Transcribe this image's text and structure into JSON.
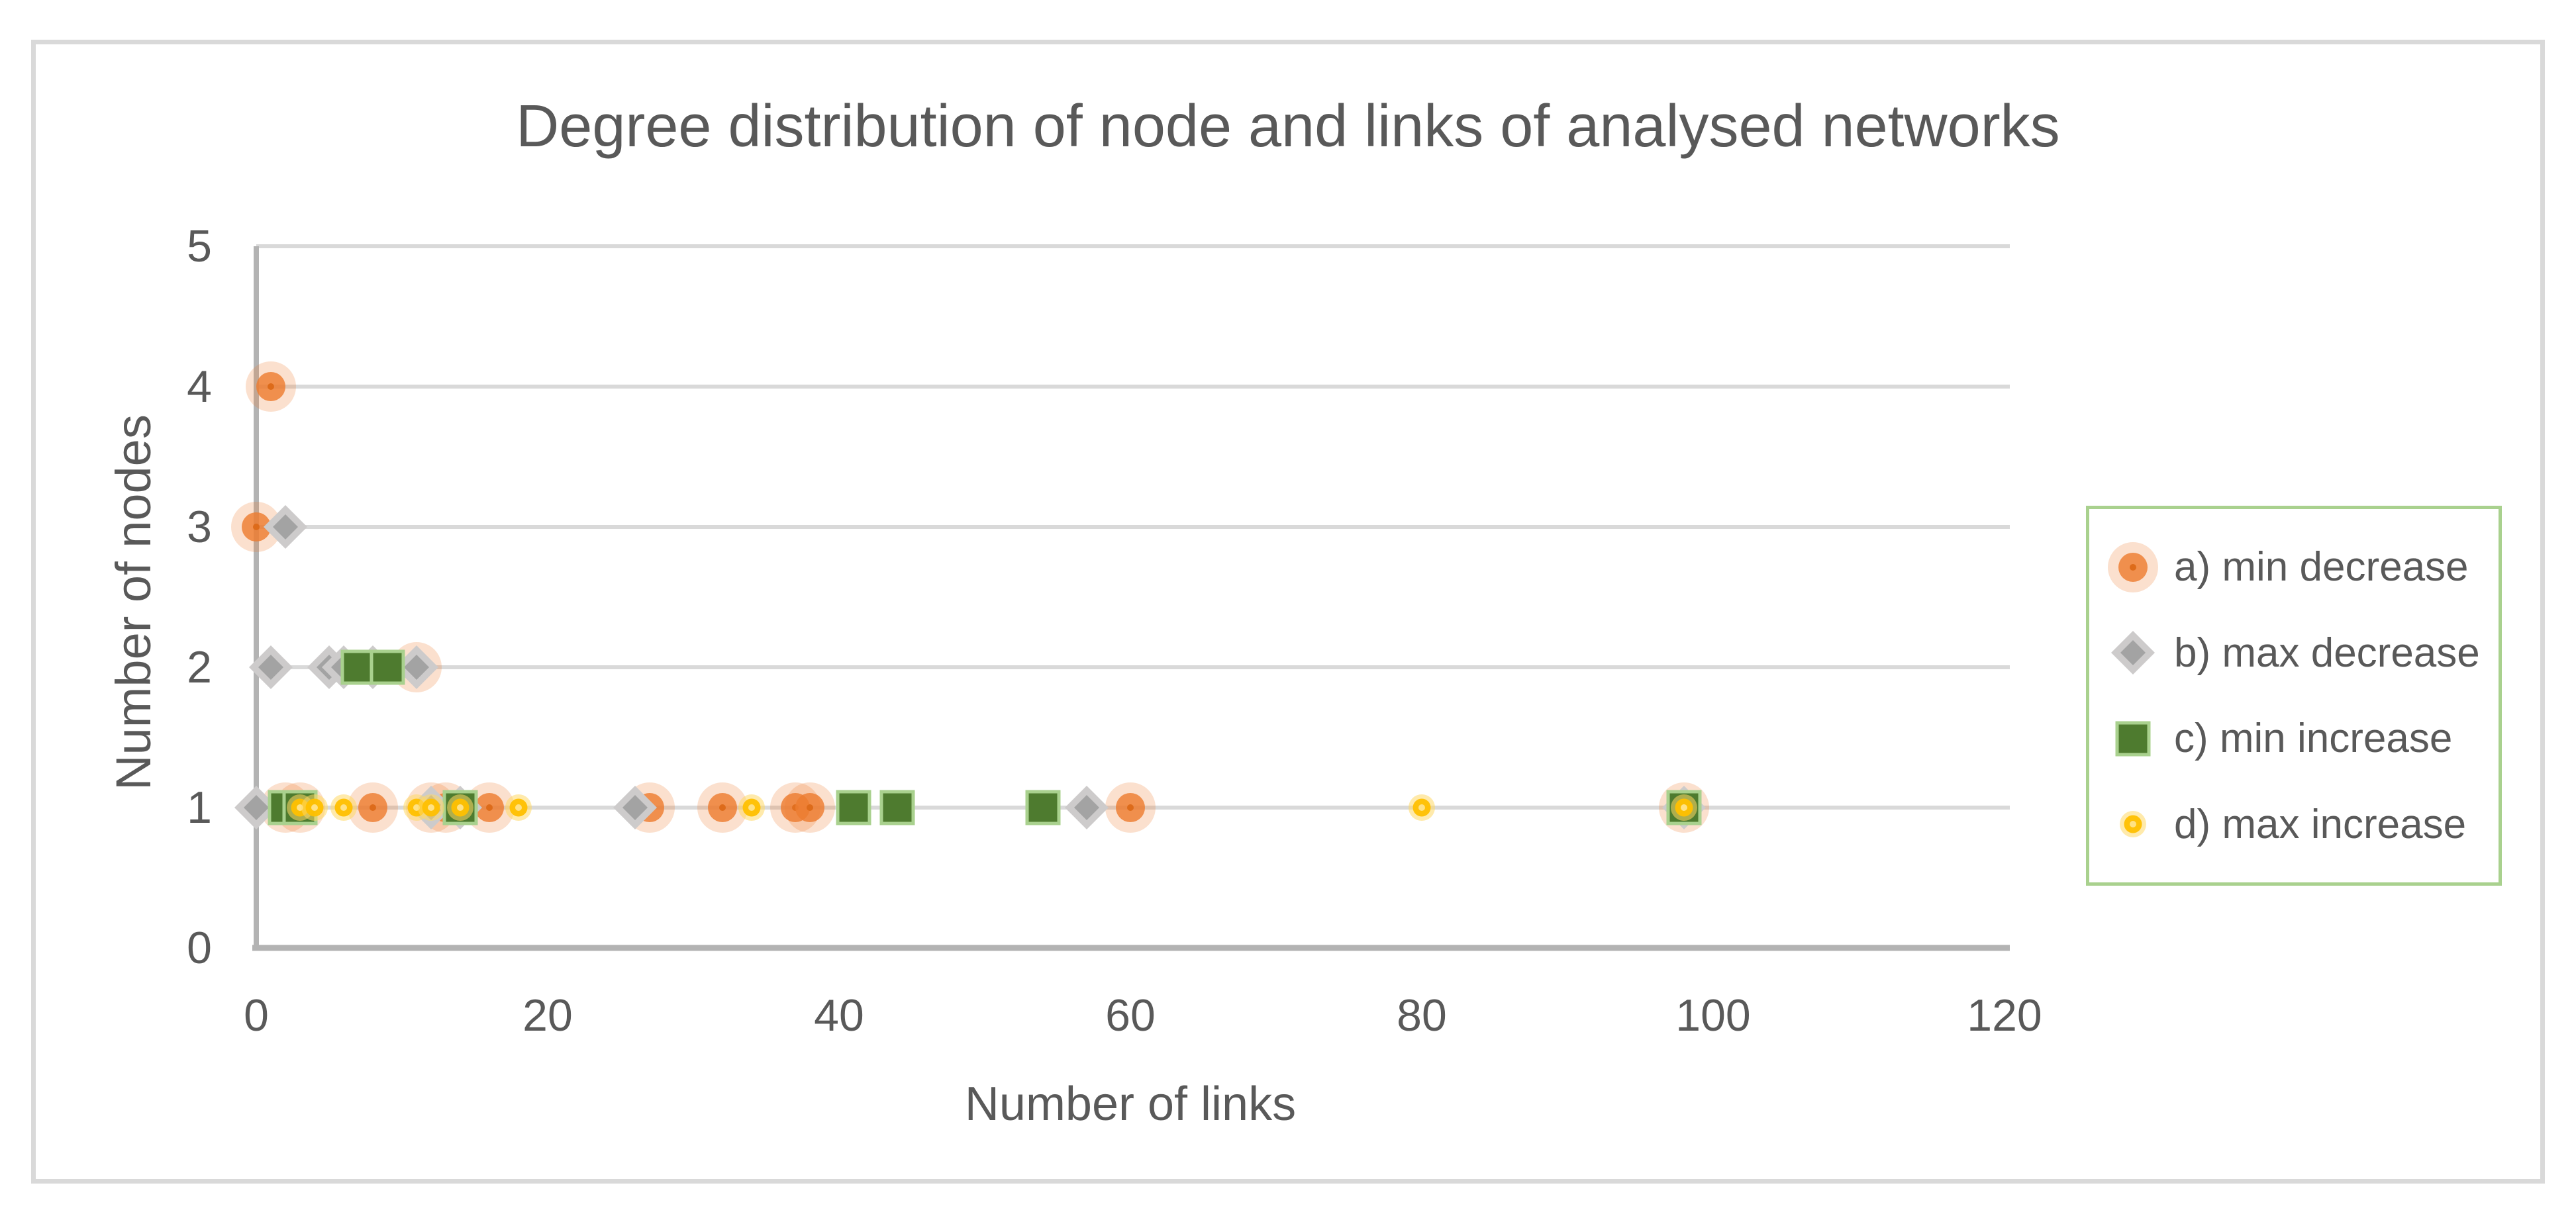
{
  "title": "Degree distribution of node and links of analysed networks",
  "colors": {
    "text": "#595959",
    "gridline": "#D9D9D9",
    "axis": "#B3B3B3",
    "figure_border": "#D9D9D9",
    "legend_border": "#A9D18E",
    "orange": "#ED7D31",
    "orange_dark": "#DD6B1A",
    "gray_light": "#CDCBCB",
    "gray_dark": "#A3A3A3",
    "green": "#4E7B2F",
    "green_border": "#A9D18E",
    "yellow": "#FFC000",
    "yellow_light": "#FFD966",
    "yellow_pale": "#FFE285"
  },
  "chart_data": {
    "type": "scatter",
    "title": "Degree distribution of node and links of analysed networks",
    "xlabel": "Number of links",
    "ylabel": "Number of nodes",
    "xlim": [
      0,
      120
    ],
    "ylim": [
      0,
      5
    ],
    "x_ticks": [
      0,
      20,
      40,
      60,
      80,
      100,
      120
    ],
    "y_ticks": [
      0,
      1,
      2,
      3,
      4,
      5
    ],
    "grid": "horizontal",
    "legend_position": "right",
    "series": [
      {
        "name": "a) min decrease",
        "marker": "orange-halo-circle",
        "points": [
          [
            0,
            3
          ],
          [
            1,
            4
          ],
          [
            2,
            1
          ],
          [
            3,
            1
          ],
          [
            8,
            1
          ],
          [
            11,
            2
          ],
          [
            12,
            1
          ],
          [
            13,
            1
          ],
          [
            16,
            1
          ],
          [
            27,
            1
          ],
          [
            32,
            1
          ],
          [
            37,
            1
          ],
          [
            38,
            1
          ],
          [
            60,
            1
          ],
          [
            98,
            1
          ]
        ]
      },
      {
        "name": "b) max decrease",
        "marker": "gray-diamond",
        "points": [
          [
            2,
            3
          ],
          [
            1,
            2
          ],
          [
            5,
            2
          ],
          [
            6,
            2
          ],
          [
            8,
            2
          ],
          [
            11,
            2
          ],
          [
            0,
            1
          ],
          [
            12,
            1
          ],
          [
            14,
            1
          ],
          [
            26,
            1
          ],
          [
            57,
            1
          ],
          [
            98,
            1
          ]
        ]
      },
      {
        "name": "c) min increase",
        "marker": "green-square",
        "points": [
          [
            7,
            2
          ],
          [
            9,
            2
          ],
          [
            2,
            1
          ],
          [
            3,
            1
          ],
          [
            14,
            1
          ],
          [
            41,
            1
          ],
          [
            44,
            1
          ],
          [
            54,
            1
          ],
          [
            98,
            1
          ]
        ]
      },
      {
        "name": "d) max increase",
        "marker": "yellow-halo-circle",
        "points": [
          [
            3,
            1
          ],
          [
            4,
            1
          ],
          [
            6,
            1
          ],
          [
            11,
            1
          ],
          [
            12,
            1
          ],
          [
            14,
            1
          ],
          [
            18,
            1
          ],
          [
            34,
            1
          ],
          [
            80,
            1
          ],
          [
            98,
            1
          ]
        ]
      }
    ]
  }
}
